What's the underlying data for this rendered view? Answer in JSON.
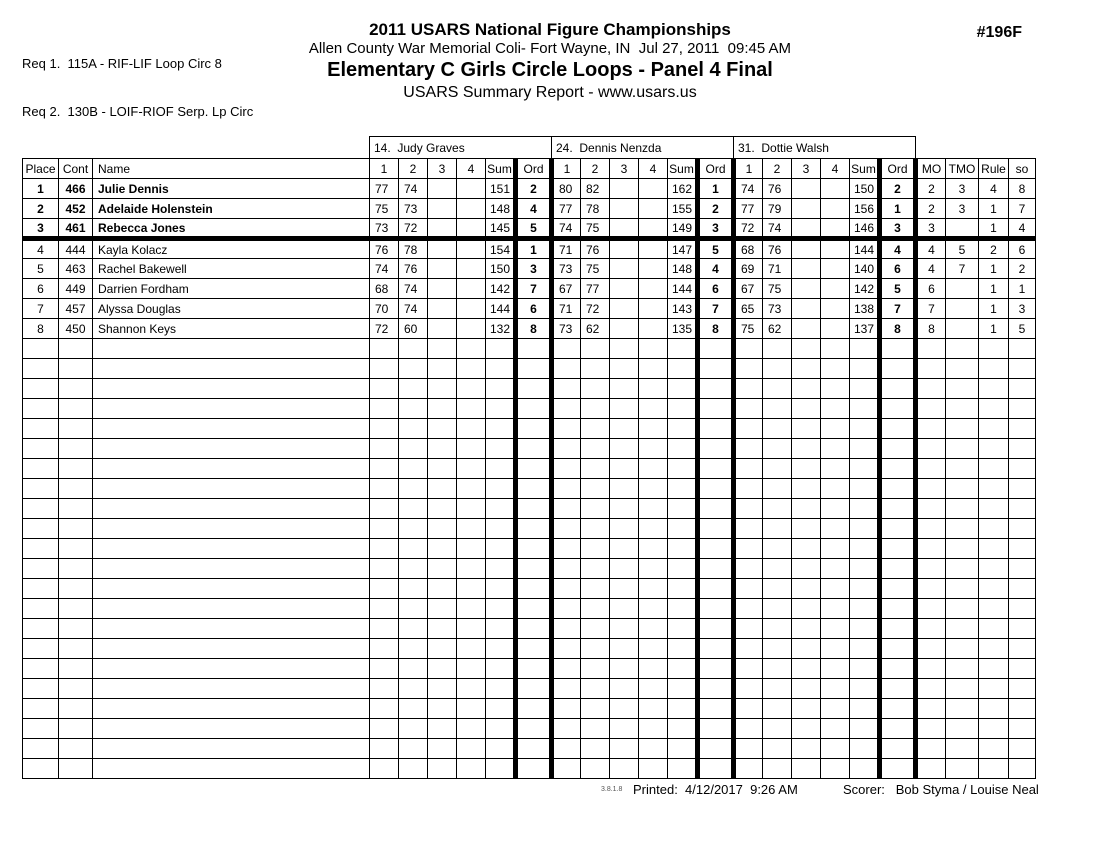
{
  "page": {
    "req_lines": [
      "Req 1.  115A - RIF-LIF Loop Circ 8",
      "Req 2.  130B - LOIF-RIOF Serp. Lp Circ"
    ],
    "title": "2011 USARS National Figure Championships",
    "venue_line": "Allen County War Memorial Coli- Fort Wayne, IN  Jul 27, 2011  09:45 AM",
    "event_title": "Elementary C Girls Circle Loops - Panel 4 Final",
    "report_line": "USARS Summary Report - www.usars.us",
    "event_number": "#196F"
  },
  "table": {
    "left_columns": [
      "Place",
      "Cont",
      "Name"
    ],
    "judges": [
      "14.  Judy Graves",
      "24.  Dennis Nenzda",
      "31.  Dottie Walsh"
    ],
    "judge_columns": [
      "1",
      "2",
      "3",
      "4",
      "Sum",
      "Ord"
    ],
    "right_columns": [
      "MO",
      "TMO",
      "Rule",
      "so"
    ],
    "rows": [
      {
        "place": "1",
        "cont": "466",
        "name": "Julie Dennis",
        "top3": true,
        "judges": [
          [
            "77",
            "74",
            "",
            "",
            "151",
            "2"
          ],
          [
            "80",
            "82",
            "",
            "",
            "162",
            "1"
          ],
          [
            "74",
            "76",
            "",
            "",
            "150",
            "2"
          ]
        ],
        "mo": "2",
        "tmo": "3",
        "rule": "4",
        "so": "8"
      },
      {
        "place": "2",
        "cont": "452",
        "name": "Adelaide Holenstein",
        "top3": true,
        "judges": [
          [
            "75",
            "73",
            "",
            "",
            "148",
            "4"
          ],
          [
            "77",
            "78",
            "",
            "",
            "155",
            "2"
          ],
          [
            "77",
            "79",
            "",
            "",
            "156",
            "1"
          ]
        ],
        "mo": "2",
        "tmo": "3",
        "rule": "1",
        "so": "7"
      },
      {
        "place": "3",
        "cont": "461",
        "name": "Rebecca Jones",
        "top3": true,
        "judges": [
          [
            "73",
            "72",
            "",
            "",
            "145",
            "5"
          ],
          [
            "74",
            "75",
            "",
            "",
            "149",
            "3"
          ],
          [
            "72",
            "74",
            "",
            "",
            "146",
            "3"
          ]
        ],
        "mo": "3",
        "tmo": "",
        "rule": "1",
        "so": "4"
      },
      {
        "place": "4",
        "cont": "444",
        "name": "Kayla Kolacz",
        "top3": false,
        "judges": [
          [
            "76",
            "78",
            "",
            "",
            "154",
            "1"
          ],
          [
            "71",
            "76",
            "",
            "",
            "147",
            "5"
          ],
          [
            "68",
            "76",
            "",
            "",
            "144",
            "4"
          ]
        ],
        "mo": "4",
        "tmo": "5",
        "rule": "2",
        "so": "6"
      },
      {
        "place": "5",
        "cont": "463",
        "name": "Rachel Bakewell",
        "top3": false,
        "judges": [
          [
            "74",
            "76",
            "",
            "",
            "150",
            "3"
          ],
          [
            "73",
            "75",
            "",
            "",
            "148",
            "4"
          ],
          [
            "69",
            "71",
            "",
            "",
            "140",
            "6"
          ]
        ],
        "mo": "4",
        "tmo": "7",
        "rule": "1",
        "so": "2"
      },
      {
        "place": "6",
        "cont": "449",
        "name": "Darrien Fordham",
        "top3": false,
        "judges": [
          [
            "68",
            "74",
            "",
            "",
            "142",
            "7"
          ],
          [
            "67",
            "77",
            "",
            "",
            "144",
            "6"
          ],
          [
            "67",
            "75",
            "",
            "",
            "142",
            "5"
          ]
        ],
        "mo": "6",
        "tmo": "",
        "rule": "1",
        "so": "1"
      },
      {
        "place": "7",
        "cont": "457",
        "name": "Alyssa Douglas",
        "top3": false,
        "judges": [
          [
            "70",
            "74",
            "",
            "",
            "144",
            "6"
          ],
          [
            "71",
            "72",
            "",
            "",
            "143",
            "7"
          ],
          [
            "65",
            "73",
            "",
            "",
            "138",
            "7"
          ]
        ],
        "mo": "7",
        "tmo": "",
        "rule": "1",
        "so": "3"
      },
      {
        "place": "8",
        "cont": "450",
        "name": "Shannon Keys",
        "top3": false,
        "judges": [
          [
            "72",
            "60",
            "",
            "",
            "132",
            "8"
          ],
          [
            "73",
            "62",
            "",
            "",
            "135",
            "8"
          ],
          [
            "75",
            "62",
            "",
            "",
            "137",
            "8"
          ]
        ],
        "mo": "8",
        "tmo": "",
        "rule": "1",
        "so": "5"
      }
    ],
    "empty_row_count": 22
  },
  "footer": {
    "version": "3.8.1.8",
    "printed": "Printed:  4/12/2017  9:26 AM",
    "scorer": "Scorer:   Bob Styma / Louise Neal"
  }
}
